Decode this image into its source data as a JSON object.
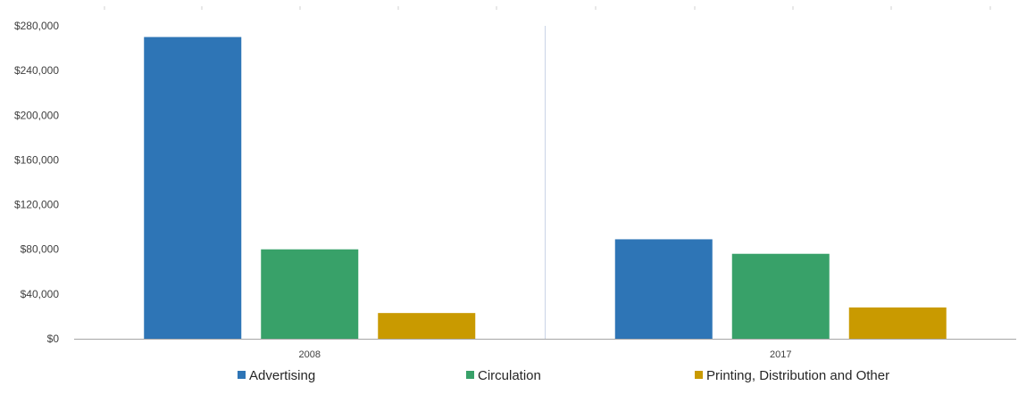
{
  "chart_data": {
    "type": "bar",
    "title": "",
    "xlabel": "",
    "ylabel": "",
    "categories": [
      "2008",
      "2017"
    ],
    "series": [
      {
        "name": "Advertising",
        "color": "#2e75b6",
        "values": [
          270000,
          89000
        ]
      },
      {
        "name": "Circulation",
        "color": "#38a169",
        "values": [
          80000,
          76000
        ]
      },
      {
        "name": "Printing, Distribution and Other",
        "color": "#c99a00",
        "values": [
          23000,
          28000
        ]
      }
    ],
    "ylim": [
      0,
      280000
    ],
    "yticks": [
      {
        "value": 0,
        "label": "$0"
      },
      {
        "value": 40000,
        "label": "$40,000"
      },
      {
        "value": 80000,
        "label": "$80,000"
      },
      {
        "value": 120000,
        "label": "$120,000"
      },
      {
        "value": 160000,
        "label": "$160,000"
      },
      {
        "value": 200000,
        "label": "$200,000"
      },
      {
        "value": 240000,
        "label": "$240,000"
      },
      {
        "value": 280000,
        "label": "$280,000"
      }
    ],
    "grid": false,
    "legend_position": "bottom",
    "axis_color": "#a6a6a6",
    "divider_color": "#c9d4e6"
  }
}
